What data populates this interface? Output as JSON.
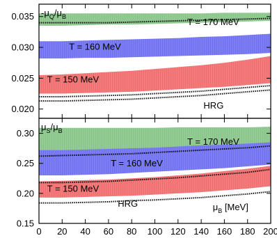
{
  "chart_data": [
    {
      "type": "area",
      "panel_label": "-μQ/μB",
      "x": [
        0,
        20,
        40,
        60,
        80,
        100,
        120,
        140,
        160,
        180,
        200
      ],
      "xlim": [
        0,
        200
      ],
      "ylim": [
        0.0185,
        0.037
      ],
      "yticks": [
        0.02,
        0.025,
        0.03,
        0.035
      ],
      "ytick_labels": [
        "0.020",
        "0.025",
        "0.030",
        "0.035"
      ],
      "grid": false,
      "series": [
        {
          "name": "T = 170 MeV",
          "color": "#88c488",
          "lower": [
            0.0335,
            0.0335,
            0.0336,
            0.0337,
            0.0337,
            0.0338,
            0.0339,
            0.034,
            0.0341,
            0.0342,
            0.0343
          ],
          "upper": [
            0.0355,
            0.0355,
            0.0355,
            0.0355,
            0.0355,
            0.0355,
            0.0355,
            0.0355,
            0.0356,
            0.0356,
            0.0356
          ],
          "dotted": [
            0.034,
            0.034,
            0.034,
            0.034,
            0.0341,
            0.0342,
            0.0343,
            0.0344,
            0.0345,
            0.0346,
            0.0347
          ]
        },
        {
          "name": "T = 160 MeV",
          "color": "#6f6ff2",
          "lower": [
            0.0282,
            0.0282,
            0.0283,
            0.0283,
            0.0284,
            0.0285,
            0.0286,
            0.0287,
            0.0288,
            0.0289,
            0.0291
          ],
          "upper": [
            0.031,
            0.031,
            0.0311,
            0.0312,
            0.0313,
            0.0314,
            0.0315,
            0.0317,
            0.0318,
            0.032,
            0.0322
          ]
        },
        {
          "name": "T = 150 MeV",
          "color": "#f16d6d",
          "lower": [
            0.0225,
            0.0225,
            0.0226,
            0.0227,
            0.0228,
            0.023,
            0.0232,
            0.0234,
            0.0236,
            0.0239,
            0.0242
          ],
          "upper": [
            0.0255,
            0.0256,
            0.0258,
            0.026,
            0.0262,
            0.0265,
            0.0268,
            0.0271,
            0.0275,
            0.028,
            0.0286
          ],
          "dotted": [
            0.022,
            0.022,
            0.0221,
            0.0222,
            0.0223,
            0.0225,
            0.0227,
            0.0229,
            0.0232,
            0.0235,
            0.0238
          ]
        },
        {
          "name": "HRG",
          "line_only": true,
          "dotted": [
            0.0213,
            0.0213,
            0.0214,
            0.0215,
            0.0216,
            0.0218,
            0.022,
            0.0222,
            0.0225,
            0.0228,
            0.0231
          ]
        }
      ],
      "annotations": [
        {
          "text": "T = 170 MeV",
          "x": 128,
          "y": 0.0336
        },
        {
          "text": "T = 160 MeV",
          "x": 26,
          "y": 0.0296
        },
        {
          "text": "T = 150 MeV",
          "x": 7,
          "y": 0.0243
        },
        {
          "text": "HRG",
          "x": 142,
          "y": 0.0201
        }
      ]
    },
    {
      "type": "area",
      "panel_label": "μS/μB",
      "x": [
        0,
        20,
        40,
        60,
        80,
        100,
        120,
        140,
        160,
        180,
        200
      ],
      "xlabel": "μB [MeV]",
      "xlim": [
        0,
        200
      ],
      "xticks": [
        0,
        20,
        40,
        60,
        80,
        100,
        120,
        140,
        160,
        180,
        200
      ],
      "xtick_labels": [
        "0",
        "20",
        "40",
        "60",
        "80",
        "100",
        "120",
        "140",
        "160",
        "180",
        "200"
      ],
      "ylim": [
        0.15,
        0.325
      ],
      "yticks": [
        0.15,
        0.2,
        0.25,
        0.3
      ],
      "ytick_labels": [
        "0.15",
        "0.20",
        "0.25",
        "0.30"
      ],
      "grid": false,
      "series": [
        {
          "name": "T = 170 MeV",
          "color": "#88c488",
          "lower": [
            0.262,
            0.263,
            0.264,
            0.265,
            0.266,
            0.268,
            0.27,
            0.272,
            0.274,
            0.276,
            0.278
          ],
          "upper": [
            0.309,
            0.309,
            0.309,
            0.309,
            0.309,
            0.309,
            0.31,
            0.31,
            0.31,
            0.31,
            0.311
          ],
          "dotted": [
            0.262,
            0.263,
            0.264,
            0.265,
            0.266,
            0.268,
            0.27,
            0.272,
            0.274,
            0.276,
            0.279
          ]
        },
        {
          "name": "T = 160 MeV",
          "color": "#6f6ff2",
          "lower": [
            0.23,
            0.23,
            0.231,
            0.232,
            0.234,
            0.236,
            0.238,
            0.24,
            0.242,
            0.245,
            0.248
          ],
          "upper": [
            0.272,
            0.272,
            0.273,
            0.274,
            0.275,
            0.276,
            0.278,
            0.28,
            0.281,
            0.283,
            0.285
          ]
        },
        {
          "name": "T = 150 MeV",
          "color": "#f16d6d",
          "lower": [
            0.193,
            0.193,
            0.194,
            0.195,
            0.196,
            0.198,
            0.2,
            0.202,
            0.205,
            0.208,
            0.212
          ],
          "upper": [
            0.22,
            0.221,
            0.222,
            0.223,
            0.225,
            0.227,
            0.23,
            0.233,
            0.237,
            0.241,
            0.246
          ],
          "dotted": [
            0.218,
            0.218,
            0.219,
            0.22,
            0.222,
            0.224,
            0.226,
            0.229,
            0.232,
            0.235,
            0.24
          ]
        },
        {
          "name": "HRG",
          "line_only": true,
          "dotted": [
            0.184,
            0.184,
            0.185,
            0.186,
            0.188,
            0.189,
            0.191,
            0.193,
            0.196,
            0.199,
            0.203
          ]
        }
      ],
      "annotations": [
        {
          "text": "T = 170 MeV",
          "x": 128,
          "y": 0.281
        },
        {
          "text": "T = 160 MeV",
          "x": 62,
          "y": 0.245
        },
        {
          "text": "T = 150 MeV",
          "x": 7,
          "y": 0.203
        },
        {
          "text": "HRG",
          "x": 68,
          "y": 0.178
        },
        {
          "text": "μB [MeV]",
          "x": 150,
          "y": 0.172
        }
      ]
    }
  ]
}
